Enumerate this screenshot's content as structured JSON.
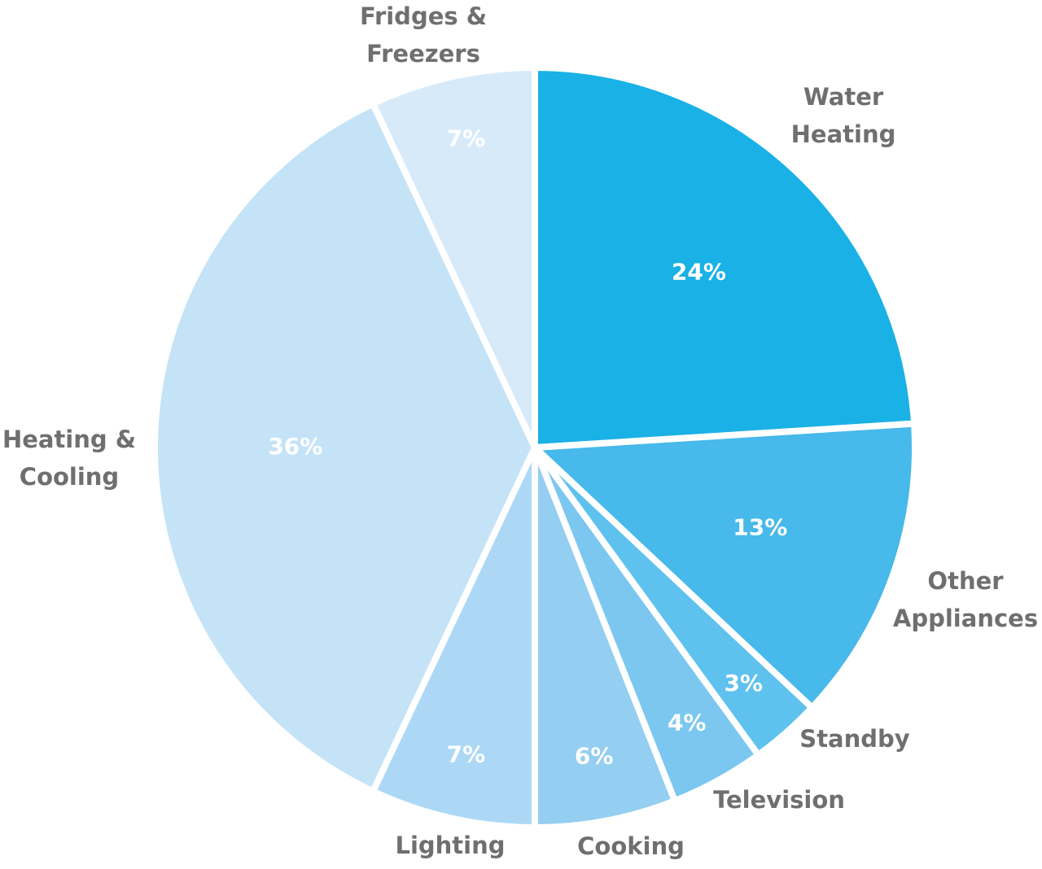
{
  "chart_data": {
    "type": "pie",
    "categories": [
      "Water Heating",
      "Other Appliances",
      "Standby",
      "Television",
      "Cooking",
      "Lighting",
      "Heating & Cooling",
      "Fridges & Freezers"
    ],
    "values": [
      24,
      13,
      3,
      4,
      6,
      7,
      36,
      7
    ],
    "value_labels": [
      "24%",
      "13%",
      "3%",
      "4%",
      "6%",
      "7%",
      "36%",
      "7%"
    ],
    "colors": [
      "#1ab1e6",
      "#47b9ea",
      "#5ec1ee",
      "#7bc7f0",
      "#94cef1",
      "#acd8f6",
      "#c5e3f7",
      "#d7eaf9"
    ]
  }
}
